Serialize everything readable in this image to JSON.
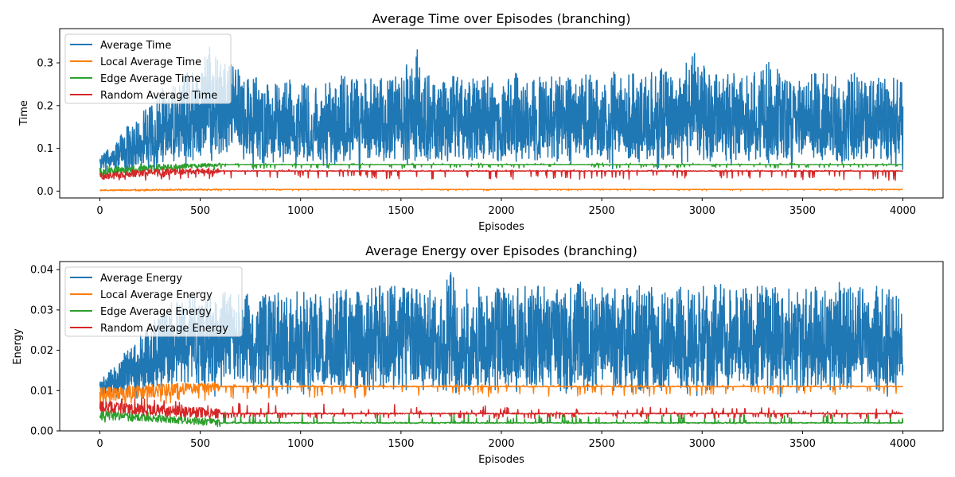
{
  "chart_data": [
    {
      "type": "line",
      "title": "Average Time over Episodes (branching)",
      "xlabel": "Episodes",
      "ylabel": "Time",
      "xlim": [
        -200,
        4200
      ],
      "ylim": [
        -0.016,
        0.38
      ],
      "xticks": [
        0,
        500,
        1000,
        1500,
        2000,
        2500,
        3000,
        3500,
        4000
      ],
      "yticks": [
        0.0,
        0.1,
        0.2,
        0.3
      ],
      "ytick_labels": [
        "0.0",
        "0.1",
        "0.2",
        "0.3"
      ],
      "grid": false,
      "legend_position": "upper-left",
      "num_episodes": 4000,
      "series": [
        {
          "name": "Average Time",
          "color": "#1f77b4",
          "x": [
            0,
            50,
            100,
            150,
            200,
            250,
            300,
            350,
            400,
            450,
            500,
            550,
            600,
            650,
            700,
            750,
            800,
            850,
            900,
            950,
            1000,
            1100,
            1200,
            1300,
            1400,
            1500,
            1585,
            1600,
            1700,
            1800,
            1900,
            2000,
            2100,
            2200,
            2300,
            2400,
            2500,
            2600,
            2700,
            2800,
            2900,
            2940,
            3000,
            3100,
            3200,
            3300,
            3345,
            3400,
            3500,
            3600,
            3700,
            3800,
            3900,
            4000
          ],
          "baseline": [
            0.05,
            0.05,
            0.05,
            0.05,
            0.05,
            0.05,
            0.07,
            0.08,
            0.08,
            0.08,
            0.08,
            0.08,
            0.08,
            0.08,
            0.08,
            0.08,
            0.07,
            0.07,
            0.07,
            0.07,
            0.07,
            0.07,
            0.07,
            0.07,
            0.07,
            0.07,
            0.07,
            0.07,
            0.07,
            0.07,
            0.07,
            0.07,
            0.07,
            0.07,
            0.07,
            0.07,
            0.07,
            0.07,
            0.07,
            0.07,
            0.07,
            0.07,
            0.07,
            0.07,
            0.07,
            0.07,
            0.07,
            0.07,
            0.07,
            0.07,
            0.07,
            0.07,
            0.07,
            0.07
          ],
          "upper_envelope": [
            0.09,
            0.1,
            0.13,
            0.16,
            0.18,
            0.2,
            0.24,
            0.26,
            0.27,
            0.28,
            0.29,
            0.35,
            0.3,
            0.33,
            0.29,
            0.27,
            0.27,
            0.26,
            0.26,
            0.26,
            0.26,
            0.26,
            0.27,
            0.26,
            0.27,
            0.27,
            0.355,
            0.28,
            0.27,
            0.27,
            0.27,
            0.27,
            0.28,
            0.27,
            0.27,
            0.27,
            0.28,
            0.28,
            0.27,
            0.29,
            0.28,
            0.335,
            0.3,
            0.28,
            0.28,
            0.28,
            0.32,
            0.28,
            0.27,
            0.28,
            0.27,
            0.28,
            0.27,
            0.27
          ],
          "lower_envelope": [
            0.02,
            0.02,
            0.02,
            0.02,
            0.02,
            0.02,
            0.02,
            0.02,
            0.02,
            0.02,
            0.02,
            0.02,
            0.02,
            0.02,
            0.02,
            0.02,
            0.02,
            0.02,
            0.02,
            0.02,
            0.02,
            0.02,
            0.02,
            0.02,
            0.02,
            0.02,
            0.02,
            0.02,
            0.02,
            0.02,
            0.02,
            0.02,
            0.02,
            0.02,
            0.02,
            0.02,
            0.02,
            0.02,
            0.02,
            0.02,
            0.02,
            0.02,
            0.02,
            0.02,
            0.02,
            0.02,
            0.02,
            0.02,
            0.02,
            0.02,
            0.02,
            0.02,
            0.02,
            0.02
          ],
          "final_value": 0.265
        },
        {
          "name": "Local Average Time",
          "color": "#ff7f0e",
          "x": [
            0,
            300,
            600,
            4000
          ],
          "baseline": [
            0.002,
            0.003,
            0.004,
            0.004
          ],
          "upper_envelope": [
            0.004,
            0.005,
            0.005,
            0.005
          ],
          "lower_envelope": [
            0.0,
            0.0,
            0.001,
            0.001
          ],
          "final_value": 0.004
        },
        {
          "name": "Edge Average Time",
          "color": "#2ca02c",
          "x": [
            0,
            300,
            600,
            4000
          ],
          "baseline": [
            0.045,
            0.055,
            0.062,
            0.062
          ],
          "upper_envelope": [
            0.065,
            0.066,
            0.066,
            0.066
          ],
          "lower_envelope": [
            0.035,
            0.04,
            0.052,
            0.055
          ],
          "final_value": 0.062
        },
        {
          "name": "Random Average Time",
          "color": "#d62728",
          "x": [
            0,
            300,
            600,
            4000
          ],
          "baseline": [
            0.035,
            0.045,
            0.047,
            0.047
          ],
          "upper_envelope": [
            0.05,
            0.05,
            0.05,
            0.05
          ],
          "lower_envelope": [
            0.025,
            0.025,
            0.03,
            0.025
          ],
          "final_value": 0.047
        }
      ]
    },
    {
      "type": "line",
      "title": "Average Energy over Episodes (branching)",
      "xlabel": "Episodes",
      "ylabel": "Energy",
      "xlim": [
        -200,
        4200
      ],
      "ylim": [
        0.0,
        0.042
      ],
      "xticks": [
        0,
        500,
        1000,
        1500,
        2000,
        2500,
        3000,
        3500,
        4000
      ],
      "yticks": [
        0.0,
        0.01,
        0.02,
        0.03,
        0.04
      ],
      "ytick_labels": [
        "0.00",
        "0.01",
        "0.02",
        "0.03",
        "0.04"
      ],
      "grid": false,
      "legend_position": "upper-left",
      "num_episodes": 4000,
      "series": [
        {
          "name": "Average Energy",
          "color": "#1f77b4",
          "x": [
            0,
            50,
            100,
            150,
            200,
            250,
            300,
            350,
            400,
            450,
            500,
            550,
            600,
            650,
            700,
            750,
            800,
            850,
            900,
            950,
            1000,
            1100,
            1200,
            1300,
            1400,
            1500,
            1600,
            1700,
            1745,
            1800,
            1900,
            2000,
            2100,
            2200,
            2300,
            2400,
            2500,
            2600,
            2700,
            2800,
            2900,
            3000,
            3100,
            3200,
            3300,
            3400,
            3500,
            3600,
            3640,
            3700,
            3800,
            3900,
            4000
          ],
          "baseline": [
            0.009,
            0.009,
            0.009,
            0.009,
            0.009,
            0.01,
            0.011,
            0.012,
            0.012,
            0.012,
            0.012,
            0.012,
            0.012,
            0.011,
            0.011,
            0.011,
            0.011,
            0.01,
            0.01,
            0.01,
            0.01,
            0.01,
            0.01,
            0.01,
            0.01,
            0.01,
            0.01,
            0.01,
            0.01,
            0.01,
            0.01,
            0.01,
            0.01,
            0.01,
            0.01,
            0.01,
            0.01,
            0.01,
            0.01,
            0.01,
            0.01,
            0.01,
            0.01,
            0.01,
            0.01,
            0.01,
            0.01,
            0.01,
            0.01,
            0.01,
            0.01,
            0.01,
            0.01
          ],
          "upper_envelope": [
            0.013,
            0.015,
            0.018,
            0.021,
            0.024,
            0.027,
            0.029,
            0.032,
            0.033,
            0.034,
            0.035,
            0.035,
            0.035,
            0.034,
            0.034,
            0.034,
            0.034,
            0.034,
            0.035,
            0.035,
            0.035,
            0.035,
            0.035,
            0.035,
            0.036,
            0.036,
            0.036,
            0.036,
            0.04,
            0.036,
            0.036,
            0.036,
            0.036,
            0.036,
            0.036,
            0.037,
            0.036,
            0.036,
            0.036,
            0.036,
            0.036,
            0.036,
            0.037,
            0.036,
            0.036,
            0.036,
            0.035,
            0.036,
            0.0395,
            0.036,
            0.036,
            0.036,
            0.035
          ],
          "lower_envelope": [
            0.004,
            0.004,
            0.004,
            0.004,
            0.004,
            0.004,
            0.004,
            0.004,
            0.004,
            0.004,
            0.004,
            0.004,
            0.004,
            0.005,
            0.005,
            0.006,
            0.006,
            0.006,
            0.006,
            0.007,
            0.007,
            0.007,
            0.007,
            0.007,
            0.007,
            0.007,
            0.007,
            0.007,
            0.007,
            0.007,
            0.007,
            0.007,
            0.007,
            0.007,
            0.007,
            0.007,
            0.007,
            0.007,
            0.007,
            0.007,
            0.007,
            0.007,
            0.007,
            0.007,
            0.007,
            0.007,
            0.007,
            0.007,
            0.007,
            0.007,
            0.007,
            0.007,
            0.007
          ],
          "final_value": 0.0133
        },
        {
          "name": "Local Average Energy",
          "color": "#ff7f0e",
          "x": [
            0,
            300,
            600,
            4000
          ],
          "baseline": [
            0.009,
            0.01,
            0.011,
            0.011
          ],
          "upper_envelope": [
            0.0115,
            0.0115,
            0.0115,
            0.0115
          ],
          "lower_envelope": [
            0.0055,
            0.006,
            0.008,
            0.009
          ],
          "final_value": 0.011
        },
        {
          "name": "Edge Average Energy",
          "color": "#2ca02c",
          "x": [
            0,
            300,
            600,
            4000
          ],
          "baseline": [
            0.004,
            0.003,
            0.002,
            0.002
          ],
          "upper_envelope": [
            0.006,
            0.005,
            0.005,
            0.004
          ],
          "lower_envelope": [
            0.002,
            0.002,
            0.0018,
            0.0018
          ],
          "final_value": 0.002
        },
        {
          "name": "Random Average Energy",
          "color": "#d62728",
          "x": [
            0,
            300,
            600,
            4000
          ],
          "baseline": [
            0.006,
            0.005,
            0.0043,
            0.0043
          ],
          "upper_envelope": [
            0.0085,
            0.008,
            0.007,
            0.0055
          ],
          "lower_envelope": [
            0.004,
            0.003,
            0.003,
            0.003
          ],
          "final_value": 0.0043
        }
      ]
    }
  ]
}
